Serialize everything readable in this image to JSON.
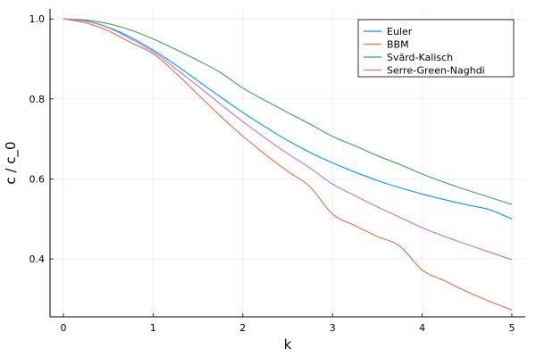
{
  "chart_data": {
    "type": "line",
    "title": "",
    "xlabel": "k",
    "ylabel": "c / c_0",
    "xlim": [
      -0.15,
      5.15
    ],
    "ylim": [
      0.255,
      1.025
    ],
    "xticks": [
      0,
      1,
      2,
      3,
      4,
      5
    ],
    "yticks": [
      0.4,
      0.6,
      0.8,
      1.0
    ],
    "xtick_labels": [
      "0",
      "1",
      "2",
      "3",
      "4",
      "5"
    ],
    "ytick_labels": [
      "0.4",
      "0.6",
      "0.8",
      "1.0"
    ],
    "grid": true,
    "legend_position": "top-right",
    "x": [
      0,
      0.25,
      0.5,
      0.75,
      1,
      1.25,
      1.5,
      1.75,
      2,
      2.25,
      2.5,
      2.75,
      3,
      3.25,
      3.5,
      3.75,
      4,
      4.25,
      4.5,
      4.75,
      5
    ],
    "series": [
      {
        "name": "Euler",
        "color": "#009AFA",
        "values": [
          1.0,
          0.995,
          0.979,
          0.954,
          0.922,
          0.885,
          0.845,
          0.805,
          0.766,
          0.73,
          0.696,
          0.666,
          0.64,
          0.617,
          0.596,
          0.578,
          0.562,
          0.548,
          0.535,
          0.523,
          0.5
        ]
      },
      {
        "name": "BBM",
        "color": "#E36F47",
        "values": [
          1.0,
          0.99,
          0.97,
          0.941,
          0.913,
          0.865,
          0.811,
          0.757,
          0.707,
          0.661,
          0.619,
          0.58,
          0.512,
          0.483,
          0.456,
          0.432,
          0.372,
          0.345,
          0.318,
          0.294,
          0.272
        ]
      },
      {
        "name": "Svärd-Kalisch",
        "color": "#3EA44E",
        "values": [
          1.0,
          0.997,
          0.988,
          0.972,
          0.95,
          0.924,
          0.896,
          0.866,
          0.827,
          0.796,
          0.766,
          0.737,
          0.706,
          0.683,
          0.658,
          0.636,
          0.612,
          0.591,
          0.572,
          0.554,
          0.536
        ]
      },
      {
        "name": "Serre-Green-Naghdi",
        "color": "#C371D2",
        "values": [
          1.0,
          0.994,
          0.978,
          0.95,
          0.918,
          0.876,
          0.832,
          0.787,
          0.743,
          0.702,
          0.663,
          0.627,
          0.587,
          0.558,
          0.53,
          0.504,
          0.478,
          0.456,
          0.436,
          0.417,
          0.398
        ]
      }
    ]
  }
}
